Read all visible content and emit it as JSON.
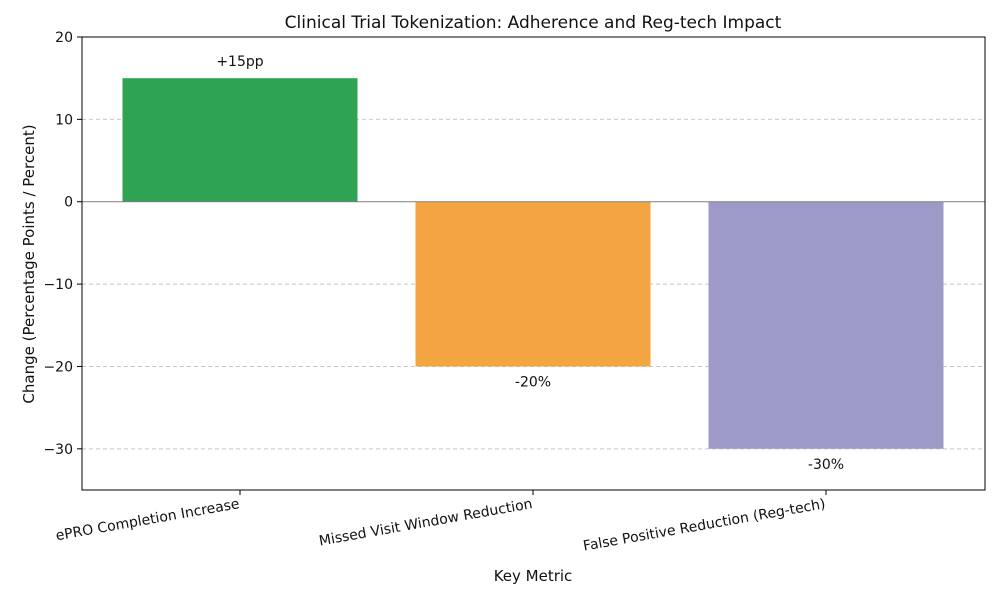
{
  "chart_data": {
    "type": "bar",
    "title": "Clinical Trial Tokenization: Adherence and Reg-tech Impact",
    "xlabel": "Key Metric",
    "ylabel": "Change (Percentage Points / Percent)",
    "categories": [
      "ePRO Completion Increase",
      "Missed Visit Window Reduction",
      "False Positive Reduction (Reg-tech)"
    ],
    "values": [
      15,
      -20,
      -30
    ],
    "data_labels": [
      "+15pp",
      "-20%",
      "-30%"
    ],
    "colors": [
      "#2ea353",
      "#f2a541",
      "#9e9ac8"
    ],
    "ylim": [
      -35,
      20
    ],
    "yticks": [
      20,
      10,
      0,
      -10,
      -20,
      -30
    ],
    "ytick_labels": [
      "20",
      "10",
      "0",
      "−10",
      "−20",
      "−30"
    ],
    "grid": true,
    "zero_line": true
  }
}
